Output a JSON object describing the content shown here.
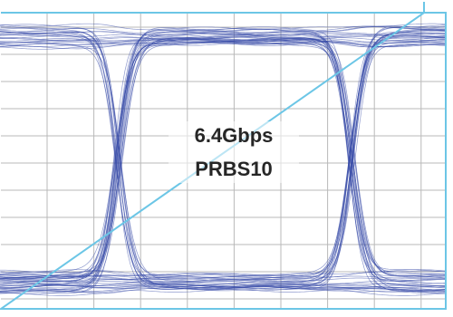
{
  "annotation": {
    "lines": [
      "6.4Gbps",
      "PRBS10"
    ]
  }
}
